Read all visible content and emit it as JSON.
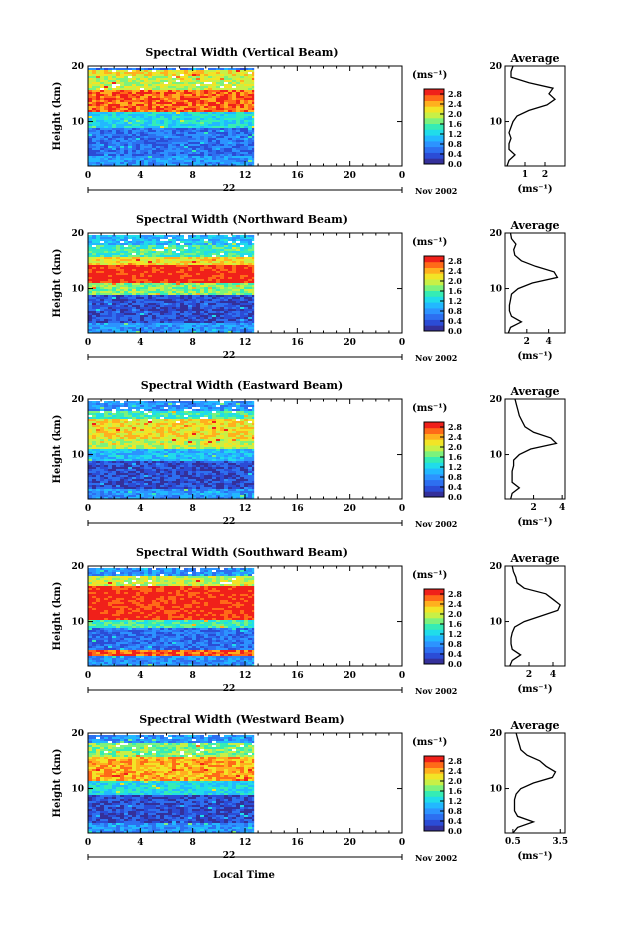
{
  "colors": {
    "palette": [
      "#34309a",
      "#2b4cd6",
      "#2d6ff0",
      "#2c93ff",
      "#22b8ff",
      "#20dcea",
      "#35ecb4",
      "#7cf27c",
      "#c8f046",
      "#f2e426",
      "#ffb01e",
      "#ff6a18",
      "#f0201a"
    ],
    "axis": "#000000",
    "background": "#ffffff"
  },
  "shared": {
    "ylabel": "Height (km)",
    "xticks": [
      "0",
      "4",
      "8",
      "12",
      "16",
      "20",
      "0"
    ],
    "yticks": [
      "20",
      "10"
    ],
    "day_label": "22",
    "date_label": "Nov 2002",
    "xlabel": "Local Time",
    "unit_label": "(ms⁻¹)",
    "colorbar_ticks": [
      "2.8",
      "2.4",
      "2.0",
      "1.6",
      "1.2",
      "0.8",
      "0.4",
      "0.0"
    ],
    "average_title": "Average",
    "average_unit": "(ms⁻¹)",
    "average_yticks": [
      "20",
      "10"
    ]
  },
  "chart_data": [
    {
      "type": "heatmap",
      "title": "Spectral Width (Vertical Beam)",
      "beam": "vertical",
      "xlim": [
        0,
        24
      ],
      "ylim": [
        2,
        20
      ],
      "data_xlim": [
        0,
        12.7
      ],
      "colorbar_range": [
        0.0,
        3.0
      ],
      "average": {
        "xticks": [
          "1",
          "2"
        ],
        "xlim": [
          0,
          3
        ],
        "profile": [
          [
            2,
            0.1
          ],
          [
            3,
            0.2
          ],
          [
            4,
            0.5
          ],
          [
            5,
            0.2
          ],
          [
            6,
            0.2
          ],
          [
            7,
            0.3
          ],
          [
            8,
            0.2
          ],
          [
            9,
            0.3
          ],
          [
            10,
            0.4
          ],
          [
            11,
            0.6
          ],
          [
            12,
            1.2
          ],
          [
            13,
            2.1
          ],
          [
            14,
            2.5
          ],
          [
            15,
            2.2
          ],
          [
            16,
            2.4
          ],
          [
            17,
            1.2
          ],
          [
            18,
            0.3
          ],
          [
            19,
            0.3
          ],
          [
            20,
            0.4
          ]
        ]
      }
    },
    {
      "type": "heatmap",
      "title": "Spectral Width (Northward Beam)",
      "beam": "northward",
      "xlim": [
        0,
        24
      ],
      "ylim": [
        2,
        20
      ],
      "data_xlim": [
        0,
        12.7
      ],
      "colorbar_range": [
        0.0,
        3.0
      ],
      "average": {
        "xticks": [
          "2",
          "4"
        ],
        "xlim": [
          0,
          5.5
        ],
        "profile": [
          [
            2,
            0.3
          ],
          [
            3,
            0.5
          ],
          [
            4,
            1.5
          ],
          [
            5,
            0.6
          ],
          [
            6,
            0.4
          ],
          [
            7,
            0.4
          ],
          [
            8,
            0.5
          ],
          [
            9,
            0.6
          ],
          [
            10,
            1.2
          ],
          [
            11,
            2.5
          ],
          [
            12,
            4.8
          ],
          [
            13,
            4.5
          ],
          [
            14,
            2.8
          ],
          [
            15,
            1.5
          ],
          [
            16,
            0.9
          ],
          [
            17,
            0.8
          ],
          [
            18,
            1.0
          ],
          [
            19,
            0.6
          ],
          [
            20,
            0.5
          ]
        ]
      }
    },
    {
      "type": "heatmap",
      "title": "Spectral Width (Eastward Beam)",
      "beam": "eastward",
      "xlim": [
        0,
        24
      ],
      "ylim": [
        2,
        20
      ],
      "data_xlim": [
        0,
        12.7
      ],
      "colorbar_range": [
        0.0,
        3.0
      ],
      "average": {
        "xticks": [
          "2",
          "4"
        ],
        "xlim": [
          0,
          4.2
        ],
        "profile": [
          [
            2,
            0.4
          ],
          [
            3,
            0.5
          ],
          [
            4,
            1.0
          ],
          [
            5,
            0.5
          ],
          [
            6,
            0.5
          ],
          [
            7,
            0.5
          ],
          [
            8,
            0.6
          ],
          [
            9,
            0.6
          ],
          [
            10,
            1.0
          ],
          [
            11,
            1.8
          ],
          [
            12,
            3.6
          ],
          [
            13,
            3.2
          ],
          [
            14,
            2.0
          ],
          [
            15,
            1.4
          ],
          [
            16,
            1.2
          ],
          [
            17,
            1.0
          ],
          [
            18,
            0.9
          ],
          [
            19,
            0.8
          ],
          [
            20,
            0.7
          ]
        ]
      }
    },
    {
      "type": "heatmap",
      "title": "Spectral Width (Southward Beam)",
      "beam": "southward",
      "xlim": [
        0,
        24
      ],
      "ylim": [
        2,
        20
      ],
      "data_xlim": [
        0,
        12.7
      ],
      "colorbar_range": [
        0.0,
        3.0
      ],
      "average": {
        "xticks": [
          "2",
          "4"
        ],
        "xlim": [
          0,
          5
        ],
        "profile": [
          [
            2,
            0.4
          ],
          [
            3,
            0.6
          ],
          [
            4,
            1.3
          ],
          [
            5,
            0.6
          ],
          [
            6,
            0.5
          ],
          [
            7,
            0.5
          ],
          [
            8,
            0.6
          ],
          [
            9,
            0.8
          ],
          [
            10,
            1.6
          ],
          [
            11,
            3.0
          ],
          [
            12,
            4.4
          ],
          [
            13,
            4.6
          ],
          [
            14,
            4.0
          ],
          [
            15,
            3.4
          ],
          [
            16,
            1.6
          ],
          [
            17,
            1.0
          ],
          [
            18,
            0.9
          ],
          [
            19,
            0.7
          ],
          [
            20,
            0.6
          ]
        ]
      }
    },
    {
      "type": "heatmap",
      "title": "Spectral Width (Westward Beam)",
      "beam": "westward",
      "xlim": [
        0,
        24
      ],
      "ylim": [
        2,
        20
      ],
      "data_xlim": [
        0,
        12.7
      ],
      "colorbar_range": [
        0.0,
        3.0
      ],
      "average": {
        "xticks": [
          "0.5",
          "3.5"
        ],
        "xlim": [
          0,
          3.8
        ],
        "profile": [
          [
            2,
            0.5
          ],
          [
            3,
            0.8
          ],
          [
            4,
            1.8
          ],
          [
            5,
            0.8
          ],
          [
            6,
            0.6
          ],
          [
            7,
            0.6
          ],
          [
            8,
            0.6
          ],
          [
            9,
            0.7
          ],
          [
            10,
            1.0
          ],
          [
            11,
            1.8
          ],
          [
            12,
            3.0
          ],
          [
            13,
            3.2
          ],
          [
            14,
            2.6
          ],
          [
            15,
            2.2
          ],
          [
            16,
            1.4
          ],
          [
            17,
            1.0
          ],
          [
            18,
            0.9
          ],
          [
            19,
            0.8
          ],
          [
            20,
            0.7
          ]
        ]
      }
    }
  ]
}
